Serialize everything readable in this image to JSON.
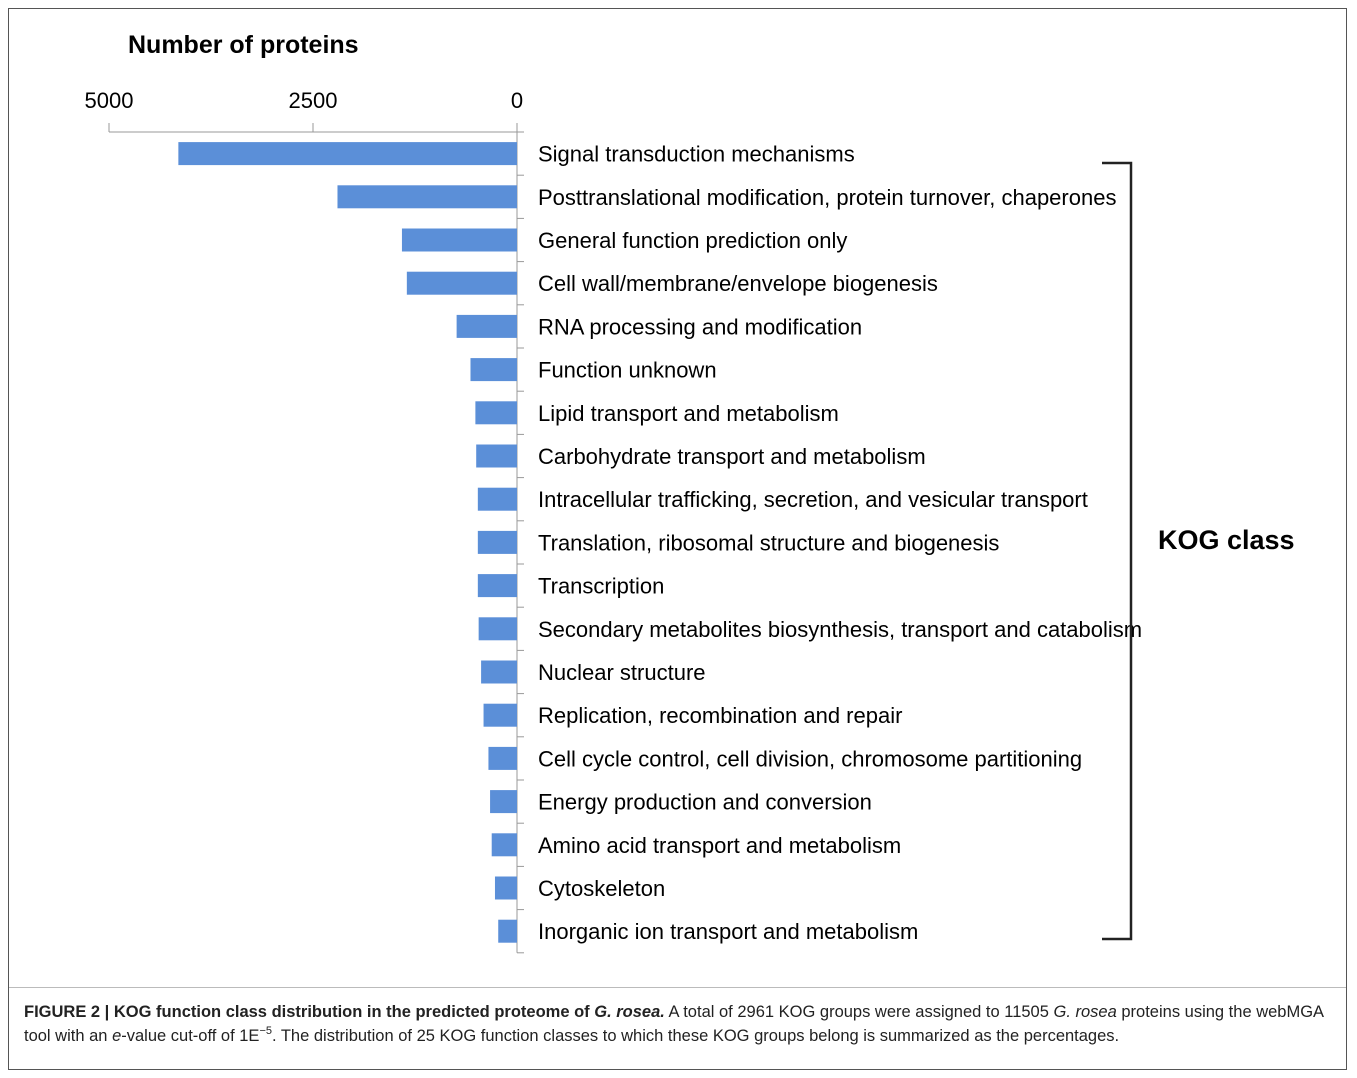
{
  "chart_data": {
    "type": "bar",
    "orientation": "horizontal",
    "x_direction": "reversed",
    "title": "Number of  proteins",
    "xlim": [
      0,
      5000
    ],
    "xticks": [
      "5000",
      "2500",
      "0"
    ],
    "xtick_values": [
      5000,
      2500,
      0
    ],
    "bar_color": "#5b8fd8",
    "categories": [
      "Signal transduction mechanisms",
      "Posttranslational modification, protein turnover, chaperones",
      "General function prediction only",
      "Cell wall/membrane/envelope biogenesis",
      "RNA processing and modification",
      "Function unknown",
      "Lipid transport and metabolism",
      "Carbohydrate transport and metabolism",
      "Intracellular trafficking, secretion, and vesicular transport",
      "Translation, ribosomal structure and biogenesis",
      "Transcription",
      "Secondary metabolites biosynthesis, transport and catabolism",
      "Nuclear structure",
      "Replication, recombination and repair",
      "Cell cycle control, cell division, chromosome partitioning",
      "Energy production and conversion",
      "Amino acid transport and metabolism",
      "Cytoskeleton",
      "Inorganic ion transport and metabolism"
    ],
    "values": [
      4150,
      2200,
      1410,
      1350,
      740,
      570,
      510,
      500,
      480,
      480,
      480,
      470,
      440,
      410,
      350,
      330,
      310,
      270,
      230
    ],
    "bracket_label": "KOG class",
    "grid": false,
    "legend": "none"
  },
  "caption": {
    "lead_prefix": "FIGURE 2 | KOG function class distribution in the predicted proteome of ",
    "lead_species": "G. rosea.",
    "text_1": " A total of 2961 KOG groups were assigned to 11505 ",
    "species_2": "G. rosea",
    "text_2": " proteins using the webMGA tool with an ",
    "evalue_italic": "e",
    "text_3": "-value cut-off of 1E",
    "superscript": "−5",
    "text_4": ". The distribution of 25 KOG function classes to which these KOG groups belong is summarized as the percentages."
  }
}
